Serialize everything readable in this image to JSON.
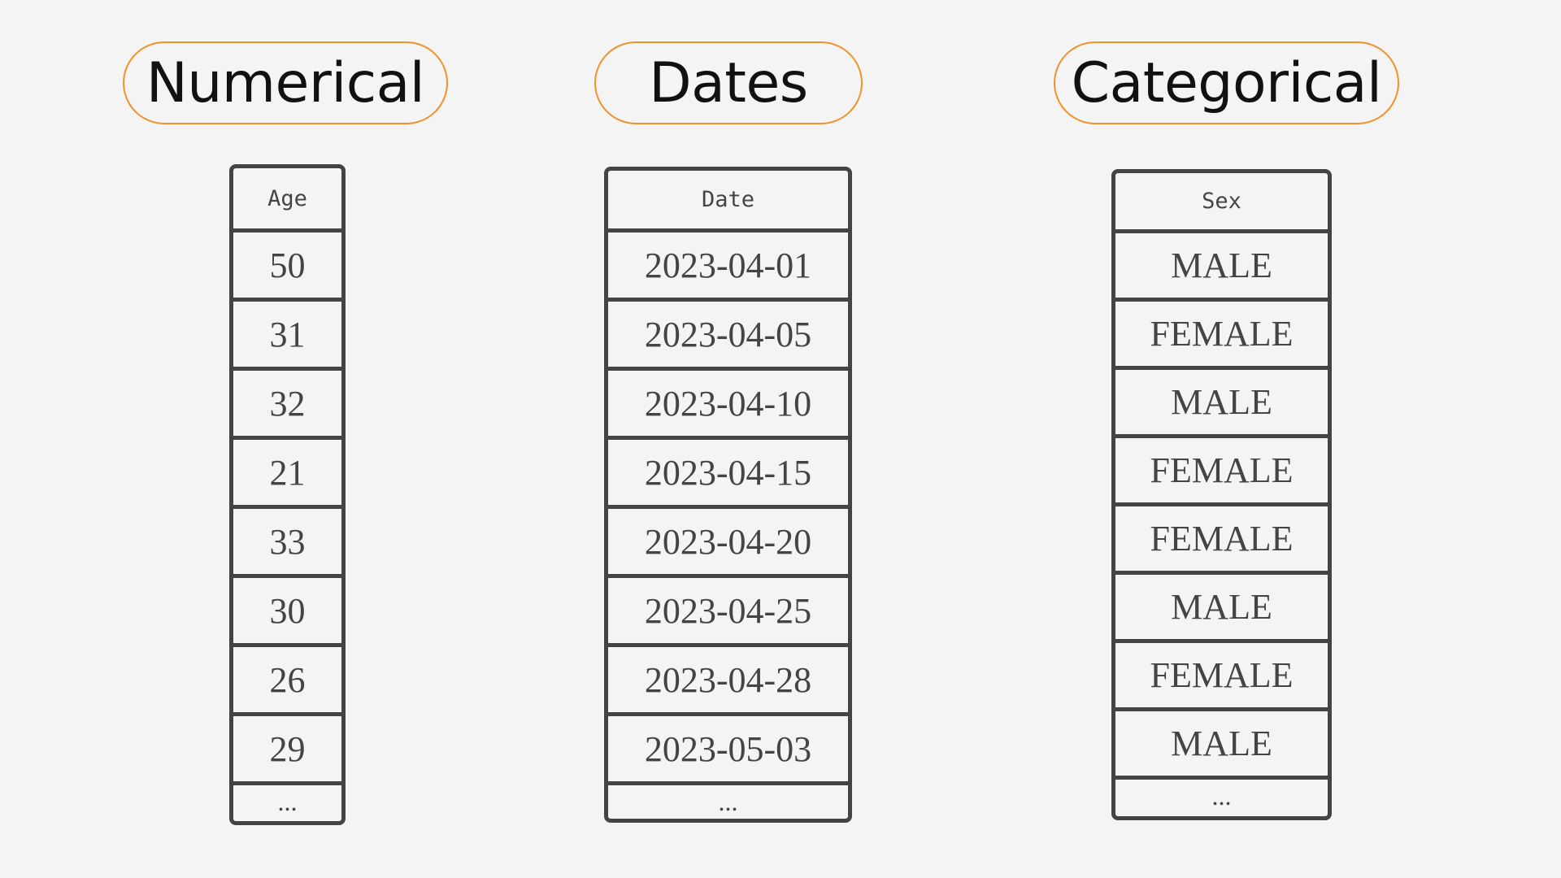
{
  "groups": [
    {
      "id": "numerical",
      "title": "Numerical",
      "column_header": "Age",
      "values": [
        "50",
        "31",
        "32",
        "21",
        "33",
        "30",
        "26",
        "29"
      ],
      "ellipsis": "..."
    },
    {
      "id": "dates",
      "title": "Dates",
      "column_header": "Date",
      "values": [
        "2023-04-01",
        "2023-04-05",
        "2023-04-10",
        "2023-04-15",
        "2023-04-20",
        "2023-04-25",
        "2023-04-28",
        "2023-05-03"
      ],
      "ellipsis": "..."
    },
    {
      "id": "categorical",
      "title": "Categorical",
      "column_header": "Sex",
      "values": [
        "MALE",
        "FEMALE",
        "MALE",
        "FEMALE",
        "FEMALE",
        "MALE",
        "FEMALE",
        "MALE"
      ],
      "ellipsis": "..."
    }
  ],
  "colors": {
    "background": "#f4f4f4",
    "pill_border": "#f0922b",
    "table_border": "#444444",
    "text": "#444444"
  }
}
